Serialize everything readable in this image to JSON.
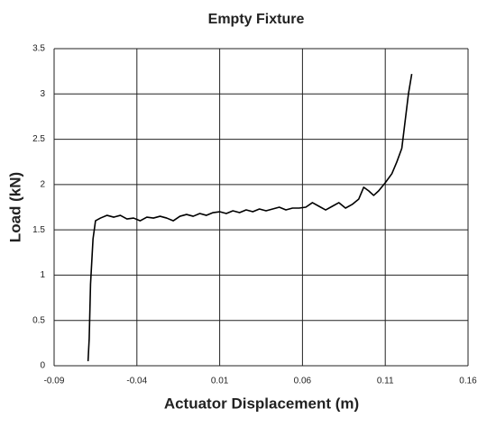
{
  "chart_data": {
    "type": "line",
    "title": "Empty Fixture",
    "xlabel": "Actuator Displacement (m)",
    "ylabel": "Load (kN)",
    "xlim": [
      -0.09,
      0.16
    ],
    "xticks": [
      -0.09,
      -0.04,
      0.01,
      0.06,
      0.11,
      0.16
    ],
    "ylim": [
      0,
      3.5
    ],
    "yticks": [
      0,
      0.5,
      1,
      1.5,
      2,
      2.5,
      3,
      3.5
    ],
    "grid": true,
    "series": [
      {
        "name": "Load",
        "color": "#000000",
        "x": [
          -0.0695,
          -0.0688,
          -0.068,
          -0.0665,
          -0.065,
          -0.062,
          -0.058,
          -0.054,
          -0.05,
          -0.046,
          -0.042,
          -0.038,
          -0.034,
          -0.03,
          -0.026,
          -0.022,
          -0.018,
          -0.014,
          -0.01,
          -0.006,
          -0.002,
          0.002,
          0.006,
          0.01,
          0.014,
          0.018,
          0.022,
          0.026,
          0.03,
          0.034,
          0.038,
          0.042,
          0.046,
          0.05,
          0.054,
          0.058,
          0.062,
          0.066,
          0.07,
          0.074,
          0.078,
          0.082,
          0.086,
          0.09,
          0.094,
          0.097,
          0.1,
          0.103,
          0.106,
          0.11,
          0.114,
          0.117,
          0.12,
          0.122,
          0.124,
          0.126
        ],
        "values": [
          0.05,
          0.3,
          0.9,
          1.4,
          1.6,
          1.63,
          1.66,
          1.64,
          1.66,
          1.62,
          1.63,
          1.6,
          1.64,
          1.63,
          1.65,
          1.63,
          1.6,
          1.65,
          1.67,
          1.65,
          1.68,
          1.66,
          1.69,
          1.7,
          1.68,
          1.71,
          1.69,
          1.72,
          1.7,
          1.73,
          1.71,
          1.73,
          1.75,
          1.72,
          1.74,
          1.74,
          1.75,
          1.8,
          1.76,
          1.72,
          1.76,
          1.8,
          1.74,
          1.78,
          1.84,
          1.97,
          1.93,
          1.88,
          1.93,
          2.02,
          2.12,
          2.25,
          2.4,
          2.7,
          3.0,
          3.22
        ]
      }
    ]
  }
}
